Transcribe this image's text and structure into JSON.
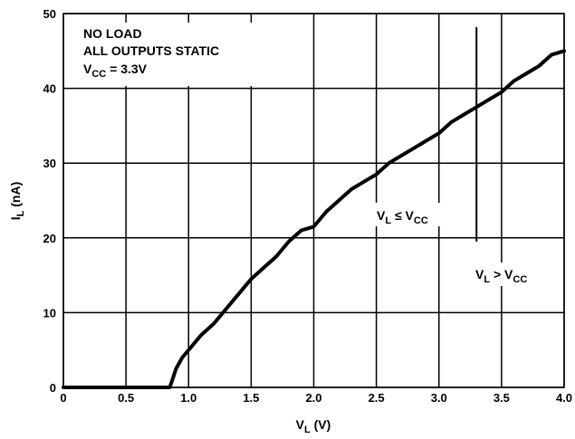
{
  "chart_data": {
    "type": "line",
    "xlabel": "V",
    "xlabel_sub": "L",
    "xlabel_unit": " (V)",
    "ylabel": "I",
    "ylabel_sub": "L",
    "ylabel_unit": " (nA)",
    "xlim": [
      0,
      4.0
    ],
    "ylim": [
      0,
      50
    ],
    "x_ticks": [
      "0",
      "0.5",
      "1.0",
      "1.5",
      "2.0",
      "2.5",
      "3.0",
      "3.5",
      "4.0"
    ],
    "y_ticks": [
      "0",
      "10",
      "20",
      "30",
      "40",
      "50"
    ],
    "grid": true,
    "series": [
      {
        "x": [
          0,
          0.85,
          0.88,
          0.9,
          0.95,
          1.0,
          1.1,
          1.2,
          1.3,
          1.4,
          1.5,
          1.6,
          1.7,
          1.8,
          1.9,
          2.0,
          2.1,
          2.2,
          2.3,
          2.4,
          2.5,
          2.6,
          2.7,
          2.8,
          2.9,
          3.0,
          3.1,
          3.2,
          3.3,
          3.4,
          3.5,
          3.6,
          3.7,
          3.8,
          3.9,
          4.0
        ],
        "values": [
          0,
          0,
          1.5,
          2.5,
          4,
          5,
          7,
          8.5,
          10.5,
          12.5,
          14.5,
          16,
          17.5,
          19.5,
          21,
          21.5,
          23.5,
          25,
          26.5,
          27.5,
          28.5,
          30,
          31,
          32,
          33,
          34,
          35.5,
          36.5,
          37.5,
          38.5,
          39.5,
          41,
          42,
          43,
          44.5,
          45
        ]
      }
    ],
    "annotations": {
      "box_line1": "NO LOAD",
      "box_line2": "ALL OUTPUTS STATIC",
      "box_line3_main": "V",
      "box_line3_sub": "CC",
      "box_line3_rest": " = 3.3V",
      "left_main": "V",
      "left_sub": "L",
      "left_mid": " ≤ V",
      "left_sub2": "CC",
      "right_main": "V",
      "right_sub": "L",
      "right_mid": " > V",
      "right_sub2": "CC",
      "divider_x": 3.3
    }
  }
}
